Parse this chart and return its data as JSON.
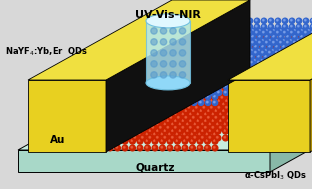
{
  "title": "UV-Vis-NIR",
  "label_au": "Au",
  "label_quartz": "Quartz",
  "label_nayf4": "NaYF$_4$:Yb,Er  QDs",
  "label_cspbi3": "α-CsPbI$_3$ QDs",
  "bg_color": "#d8d8d8",
  "quartz_top_color": "#c8ede0",
  "quartz_front_color": "#a8d8c8",
  "quartz_side_color": "#88b8a8",
  "au_face_color": "#e8d020",
  "au_top_color": "#f0e040",
  "au_side_color": "#101010",
  "blue_qd_color": "#3366cc",
  "blue_qd_hi": "#88aaee",
  "red_qd_color": "#cc2200",
  "red_qd_hi": "#ee6644",
  "cylinder_color": "#b0e8f8",
  "cylinder_edge": "#70c0e0"
}
